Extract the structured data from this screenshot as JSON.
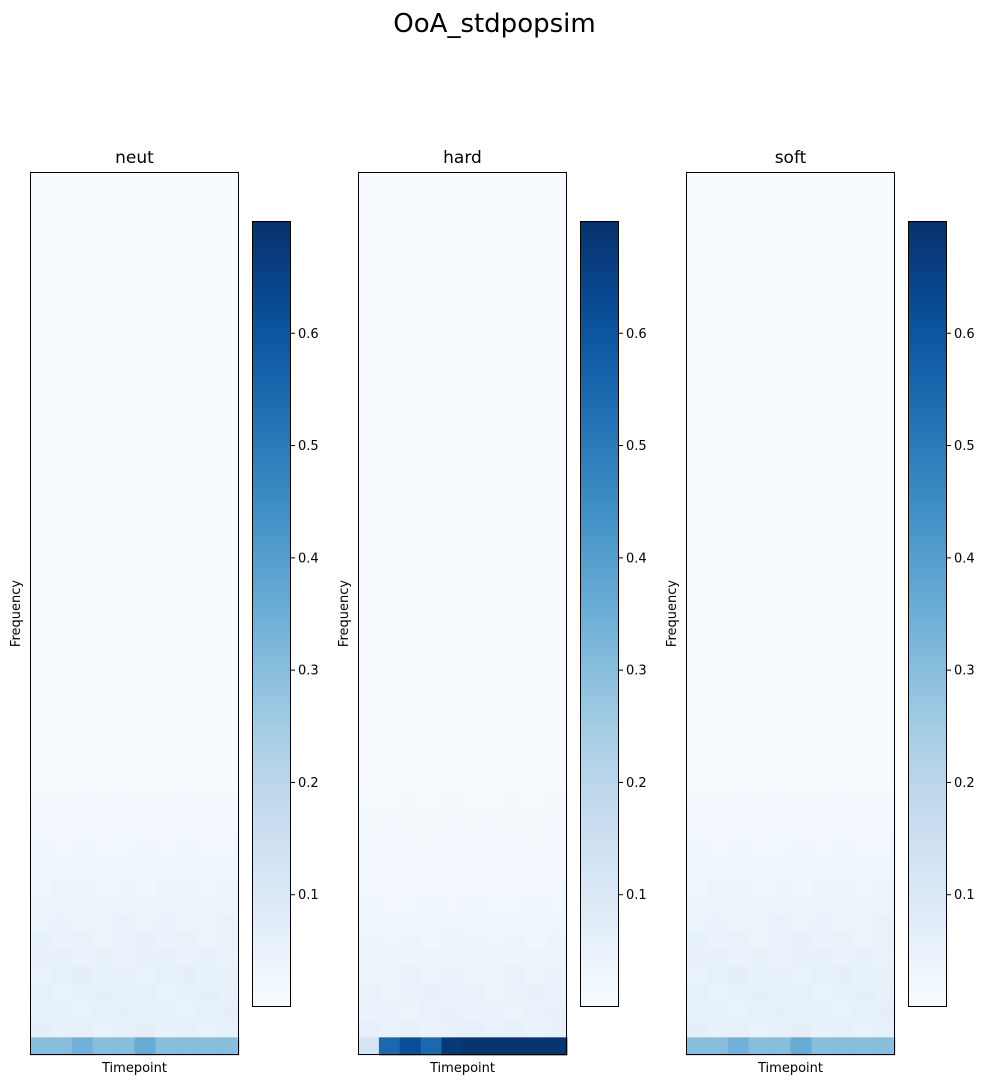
{
  "title": "OoA_stdpopsim",
  "colormap": "Blues",
  "chart_data": [
    {
      "type": "heatmap",
      "title": "neut",
      "xlabel": "Timepoint",
      "ylabel": "Frequency",
      "x_ticks": "none",
      "y_ticks": "none",
      "colorbar": {
        "range": [
          0,
          0.7
        ],
        "ticks": [
          "0.1",
          "0.2",
          "0.3",
          "0.4",
          "0.5",
          "0.6"
        ]
      },
      "rows": 50,
      "cols": 10,
      "description_values": {
        "top_rows": 0.0,
        "rows_35_to_49_max": 0.06,
        "bottom_row": [
          0.3,
          0.3,
          0.34,
          0.3,
          0.3,
          0.36,
          0.3,
          0.3,
          0.3,
          0.3
        ]
      },
      "bottom_row": [
        0.3,
        0.3,
        0.34,
        0.3,
        0.3,
        0.36,
        0.3,
        0.3,
        0.3,
        0.3
      ],
      "gradient": [
        0.012,
        0.015,
        0.02,
        0.025,
        0.03,
        0.035,
        0.04,
        0.045,
        0.05,
        0.055,
        0.06,
        0.06,
        0.06,
        0.06,
        0.06
      ]
    },
    {
      "type": "heatmap",
      "title": "hard",
      "xlabel": "Timepoint",
      "ylabel": "Frequency",
      "x_ticks": "none",
      "y_ticks": "none",
      "colorbar": {
        "range": [
          0,
          0.7
        ],
        "ticks": [
          "0.1",
          "0.2",
          "0.3",
          "0.4",
          "0.5",
          "0.6"
        ]
      },
      "rows": 50,
      "cols": 10,
      "bottom_row": [
        0.12,
        0.55,
        0.62,
        0.55,
        0.68,
        0.69,
        0.69,
        0.69,
        0.69,
        0.69
      ],
      "gradient": [
        0.008,
        0.01,
        0.012,
        0.015,
        0.018,
        0.02,
        0.025,
        0.03,
        0.035,
        0.04,
        0.045,
        0.05,
        0.05,
        0.055,
        0.055
      ]
    },
    {
      "type": "heatmap",
      "title": "soft",
      "xlabel": "Timepoint",
      "ylabel": "Frequency",
      "x_ticks": "none",
      "y_ticks": "none",
      "colorbar": {
        "range": [
          0,
          0.7
        ],
        "ticks": [
          "0.1",
          "0.2",
          "0.3",
          "0.4",
          "0.5",
          "0.6"
        ]
      },
      "rows": 50,
      "cols": 10,
      "bottom_row": [
        0.3,
        0.3,
        0.34,
        0.3,
        0.3,
        0.36,
        0.3,
        0.3,
        0.3,
        0.3
      ],
      "gradient": [
        0.012,
        0.015,
        0.02,
        0.025,
        0.03,
        0.035,
        0.04,
        0.045,
        0.05,
        0.055,
        0.06,
        0.06,
        0.06,
        0.06,
        0.06
      ]
    }
  ]
}
